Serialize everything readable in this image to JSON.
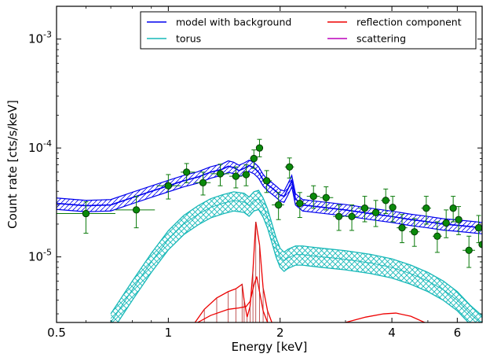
{
  "chart_data": {
    "type": "line",
    "xlabel": "Energy [keV]",
    "ylabel": "Count rate [cts/s/keV]",
    "x_scale": "log",
    "y_scale": "log",
    "xlim": [
      0.5,
      7.0
    ],
    "ylim": [
      2.5e-06,
      0.002
    ],
    "x_tick_labels": [
      "0.5",
      "1",
      "2",
      "4",
      "6"
    ],
    "x_ticks": [
      0.5,
      1,
      2,
      4,
      6
    ],
    "y_tick_labels": [
      {
        "base": "10",
        "exp": "-3",
        "value": 0.001
      },
      {
        "base": "10",
        "exp": "-4",
        "value": 0.0001
      },
      {
        "base": "10",
        "exp": "-5",
        "value": 1e-05
      }
    ],
    "legend": {
      "placement": "top-right",
      "columns": 2,
      "entries": [
        {
          "label": "model with background",
          "color": "#0000ee"
        },
        {
          "label": "reflection component",
          "color": "#ee0000"
        },
        {
          "label": "torus",
          "color": "#17b8b8"
        },
        {
          "label": "scattering",
          "color": "#bb00bb"
        }
      ]
    },
    "model_with_background": {
      "color": "#0000ee",
      "x": [
        0.5,
        0.6,
        0.7,
        0.8,
        0.9,
        1.0,
        1.1,
        1.2,
        1.3,
        1.4,
        1.45,
        1.5,
        1.55,
        1.6,
        1.65,
        1.7,
        1.75,
        1.8,
        1.85,
        1.9,
        1.95,
        2.0,
        2.05,
        2.1,
        2.15,
        2.2,
        2.3,
        2.5,
        3.0,
        3.5,
        4.0,
        4.5,
        5.0,
        5.5,
        6.0,
        6.5,
        7.0
      ],
      "y": [
        3.1e-05,
        2.95e-05,
        3e-05,
        3.5e-05,
        4e-05,
        4.5e-05,
        5e-05,
        5.4e-05,
        6e-05,
        6.4e-05,
        6.8e-05,
        6.6e-05,
        6.2e-05,
        6.5e-05,
        6.9e-05,
        6.6e-05,
        6e-05,
        5.1e-05,
        4.6e-05,
        4.3e-05,
        4e-05,
        3.7e-05,
        3.6e-05,
        4.2e-05,
        5e-05,
        3.4e-05,
        3e-05,
        2.9e-05,
        2.7e-05,
        2.5e-05,
        2.35e-05,
        2.2e-05,
        2.1e-05,
        2e-05,
        1.95e-05,
        1.9e-05,
        1.85e-05
      ],
      "band_fraction": 0.12
    },
    "torus": {
      "color": "#17b8b8",
      "x": [
        0.7,
        0.8,
        0.9,
        1.0,
        1.1,
        1.2,
        1.3,
        1.4,
        1.5,
        1.6,
        1.65,
        1.7,
        1.75,
        1.8,
        1.85,
        1.9,
        1.95,
        2.0,
        2.05,
        2.1,
        2.2,
        2.3,
        2.4,
        2.6,
        3.0,
        3.5,
        4.0,
        4.5,
        5.0,
        5.5,
        6.0,
        6.5,
        7.0
      ],
      "y": [
        2.5e-06,
        5e-06,
        9e-06,
        1.45e-05,
        2e-05,
        2.45e-05,
        2.85e-05,
        3.1e-05,
        3.3e-05,
        3.2e-05,
        2.95e-05,
        3.3e-05,
        3.4e-05,
        2.9e-05,
        2.3e-05,
        1.7e-05,
        1.25e-05,
        1e-05,
        9.2e-06,
        9.8e-06,
        1.05e-05,
        1.05e-05,
        1.03e-05,
        1e-05,
        9.5e-06,
        8.8e-06,
        8e-06,
        7e-06,
        6e-06,
        5e-06,
        4e-06,
        3e-06,
        2.4e-06
      ],
      "band_fraction": 0.2
    },
    "reflection_component": {
      "color": "#ee0000",
      "segments": [
        {
          "x": [
            1.18,
            1.25,
            1.35,
            1.45,
            1.52,
            1.58,
            1.6,
            1.63,
            1.66,
            1.69,
            1.72,
            1.76,
            1.8,
            1.85,
            1.9
          ],
          "y": [
            2.5e-06,
            3.3e-06,
            4.2e-06,
            4.8e-06,
            5.1e-06,
            5.6e-06,
            4e-06,
            2.8e-06,
            3.5e-06,
            7.5e-06,
            2.1e-05,
            1.3e-05,
            5.2e-06,
            3.2e-06,
            2.5e-06
          ]
        },
        {
          "x": [
            1.2,
            1.3,
            1.45,
            1.55,
            1.62,
            1.66,
            1.7,
            1.73,
            1.76,
            1.8,
            1.85
          ],
          "y": [
            2.5e-06,
            2.9e-06,
            3.3e-06,
            3.4e-06,
            3.5e-06,
            3.9e-06,
            5.5e-06,
            6.6e-06,
            4.8e-06,
            3.2e-06,
            2.5e-06
          ]
        },
        {
          "x": [
            3.0,
            3.4,
            3.8,
            4.1,
            4.5,
            4.9
          ],
          "y": [
            2.5e-06,
            2.8e-06,
            3e-06,
            3.05e-06,
            2.85e-06,
            2.5e-06
          ]
        }
      ]
    },
    "data_points": {
      "color": "#0a7a0a",
      "points": [
        {
          "x": 0.6,
          "y": 2.5e-05,
          "xerr": [
            0.5,
            0.72
          ],
          "yerr": [
            1.65e-05,
            3.2e-05
          ]
        },
        {
          "x": 0.82,
          "y": 2.7e-05,
          "xerr": [
            0.72,
            0.92
          ],
          "yerr": [
            1.85e-05,
            3.6e-05
          ]
        },
        {
          "x": 1.0,
          "y": 4.5e-05,
          "xerr": [
            0.93,
            1.08
          ],
          "yerr": [
            3.4e-05,
            5.7e-05
          ]
        },
        {
          "x": 1.12,
          "y": 6e-05,
          "xerr": [
            1.08,
            1.18
          ],
          "yerr": [
            4.8e-05,
            7.2e-05
          ]
        },
        {
          "x": 1.24,
          "y": 4.8e-05,
          "xerr": [
            1.18,
            1.3
          ],
          "yerr": [
            3.7e-05,
            6e-05
          ]
        },
        {
          "x": 1.38,
          "y": 5.8e-05,
          "xerr": [
            1.3,
            1.46
          ],
          "yerr": [
            4.5e-05,
            7.1e-05
          ]
        },
        {
          "x": 1.52,
          "y": 5.5e-05,
          "xerr": [
            1.46,
            1.58
          ],
          "yerr": [
            4.3e-05,
            6.7e-05
          ]
        },
        {
          "x": 1.62,
          "y": 5.7e-05,
          "xerr": [
            1.58,
            1.66
          ],
          "yerr": [
            4.5e-05,
            7e-05
          ]
        },
        {
          "x": 1.7,
          "y": 8e-05,
          "xerr": [
            1.66,
            1.73
          ],
          "yerr": [
            6.5e-05,
            9.6e-05
          ]
        },
        {
          "x": 1.76,
          "y": 0.0001,
          "xerr": [
            1.73,
            1.79
          ],
          "yerr": [
            8.3e-05,
            0.00012
          ]
        },
        {
          "x": 1.84,
          "y": 5e-05,
          "xerr": [
            1.79,
            1.9
          ],
          "yerr": [
            3.9e-05,
            6.2e-05
          ]
        },
        {
          "x": 1.98,
          "y": 3e-05,
          "xerr": [
            1.9,
            2.05
          ],
          "yerr": [
            2.2e-05,
            3.9e-05
          ]
        },
        {
          "x": 2.12,
          "y": 6.7e-05,
          "xerr": [
            2.06,
            2.18
          ],
          "yerr": [
            5.3e-05,
            8.1e-05
          ]
        },
        {
          "x": 2.26,
          "y": 3.1e-05,
          "xerr": [
            2.2,
            2.34
          ],
          "yerr": [
            2.3e-05,
            3.9e-05
          ]
        },
        {
          "x": 2.46,
          "y": 3.6e-05,
          "xerr": [
            2.36,
            2.56
          ],
          "yerr": [
            2.8e-05,
            4.5e-05
          ]
        },
        {
          "x": 2.66,
          "y": 3.5e-05,
          "xerr": [
            2.56,
            2.78
          ],
          "yerr": [
            2.7e-05,
            4.4e-05
          ]
        },
        {
          "x": 2.88,
          "y": 2.35e-05,
          "xerr": [
            2.78,
            2.98
          ],
          "yerr": [
            1.75e-05,
            3e-05
          ]
        },
        {
          "x": 3.12,
          "y": 2.35e-05,
          "xerr": [
            3.0,
            3.24
          ],
          "yerr": [
            1.75e-05,
            3e-05
          ]
        },
        {
          "x": 3.38,
          "y": 2.8e-05,
          "xerr": [
            3.24,
            3.5
          ],
          "yerr": [
            2.1e-05,
            3.6e-05
          ]
        },
        {
          "x": 3.62,
          "y": 2.55e-05,
          "xerr": [
            3.5,
            3.74
          ],
          "yerr": [
            1.9e-05,
            3.3e-05
          ]
        },
        {
          "x": 3.85,
          "y": 3.3e-05,
          "xerr": [
            3.74,
            3.96
          ],
          "yerr": [
            2.5e-05,
            4.2e-05
          ]
        },
        {
          "x": 4.02,
          "y": 2.85e-05,
          "xerr": [
            3.96,
            4.1
          ],
          "yerr": [
            2.1e-05,
            3.6e-05
          ]
        },
        {
          "x": 4.26,
          "y": 1.85e-05,
          "xerr": [
            4.12,
            4.4
          ],
          "yerr": [
            1.35e-05,
            2.45e-05
          ]
        },
        {
          "x": 4.6,
          "y": 1.7e-05,
          "xerr": [
            4.45,
            4.75
          ],
          "yerr": [
            1.25e-05,
            2.25e-05
          ]
        },
        {
          "x": 4.95,
          "y": 2.8e-05,
          "xerr": [
            4.8,
            5.1
          ],
          "yerr": [
            2e-05,
            3.6e-05
          ]
        },
        {
          "x": 5.3,
          "y": 1.55e-05,
          "xerr": [
            5.15,
            5.45
          ],
          "yerr": [
            1.1e-05,
            2.1e-05
          ]
        },
        {
          "x": 5.6,
          "y": 2.05e-05,
          "xerr": [
            5.47,
            5.73
          ],
          "yerr": [
            1.5e-05,
            2.7e-05
          ]
        },
        {
          "x": 5.85,
          "y": 2.8e-05,
          "xerr": [
            5.75,
            5.95
          ],
          "yerr": [
            2.1e-05,
            3.6e-05
          ]
        },
        {
          "x": 6.05,
          "y": 2.2e-05,
          "xerr": [
            5.96,
            6.14
          ],
          "yerr": [
            1.6e-05,
            2.9e-05
          ]
        },
        {
          "x": 6.45,
          "y": 1.15e-05,
          "xerr": [
            6.2,
            6.7
          ],
          "yerr": [
            8e-06,
            1.55e-05
          ]
        },
        {
          "x": 6.85,
          "y": 1.85e-05,
          "xerr": [
            6.7,
            7.0
          ],
          "yerr": [
            1.35e-05,
            2.4e-05
          ]
        },
        {
          "x": 7.0,
          "y": 1.3e-05,
          "xerr": [
            6.9,
            7.0
          ],
          "yerr": [
            9e-06,
            1.75e-05
          ]
        }
      ]
    }
  }
}
